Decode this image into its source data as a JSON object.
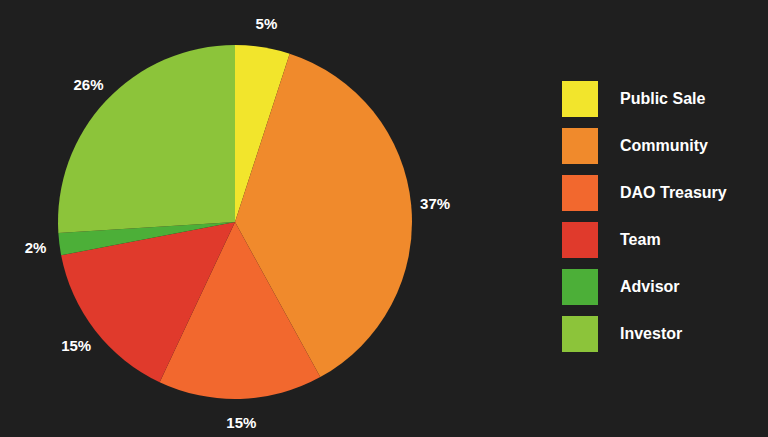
{
  "chart_data": {
    "type": "pie",
    "categories": [
      "Public Sale",
      "Community",
      "DAO Treasury",
      "Team",
      "Advisor",
      "Investor"
    ],
    "values": [
      5,
      37,
      15,
      15,
      2,
      26
    ],
    "value_labels": [
      "5%",
      "37%",
      "15%",
      "15%",
      "2%",
      "26%"
    ],
    "colors": [
      "#f2e52c",
      "#f08a2c",
      "#f2682e",
      "#e03a2c",
      "#4caf38",
      "#8cc43a"
    ],
    "data_labels": true,
    "legend": "right"
  }
}
